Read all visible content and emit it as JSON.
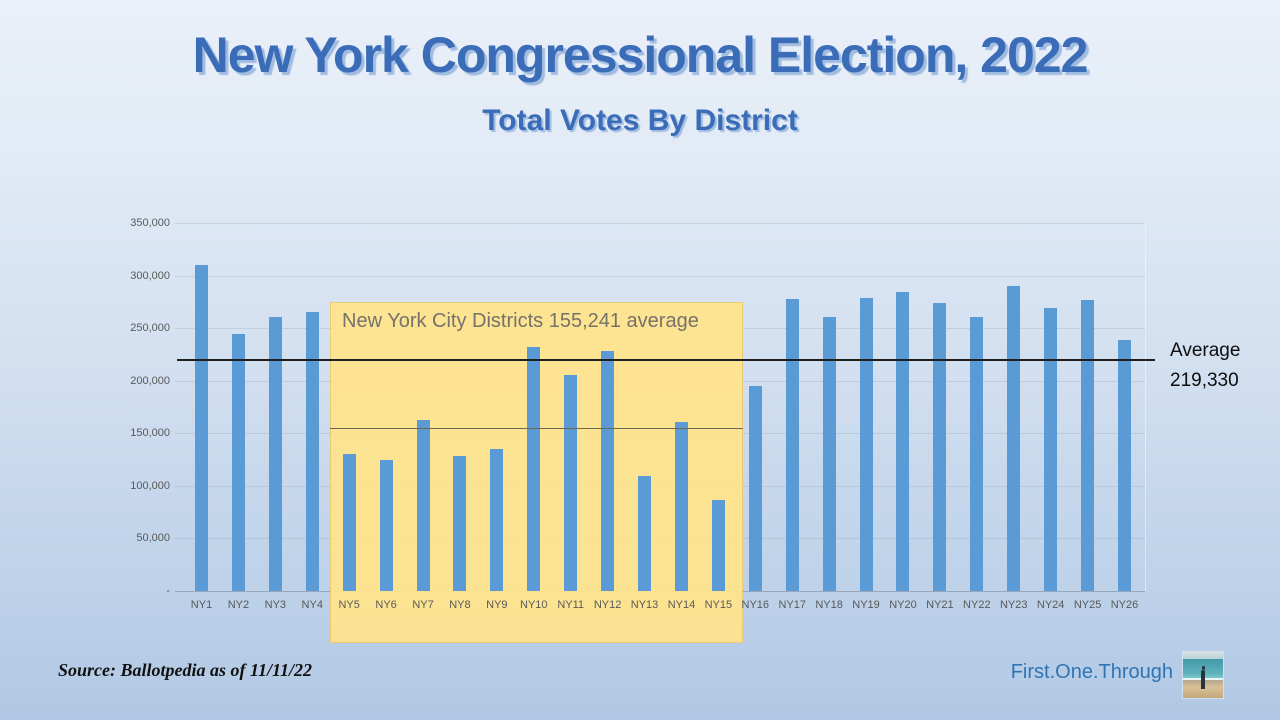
{
  "slide": {
    "title": "New York Congressional Election, 2022",
    "subtitle": "Total Votes By District",
    "source_note": "Source: Ballotpedia as of 11/11/22",
    "brand_text": "First.One.Through",
    "logo_icon": "beach-person-photo"
  },
  "chart_data": {
    "type": "bar",
    "title": "Total Votes By District",
    "categories": [
      "NY1",
      "NY2",
      "NY3",
      "NY4",
      "NY5",
      "NY6",
      "NY7",
      "NY8",
      "NY9",
      "NY10",
      "NY11",
      "NY12",
      "NY13",
      "NY14",
      "NY15",
      "NY16",
      "NY17",
      "NY18",
      "NY19",
      "NY20",
      "NY21",
      "NY22",
      "NY23",
      "NY24",
      "NY25",
      "NY26"
    ],
    "values": [
      310000,
      244000,
      261000,
      265000,
      130000,
      125000,
      163000,
      128000,
      135000,
      232000,
      205000,
      228000,
      109000,
      161000,
      87000,
      195000,
      278000,
      261000,
      279000,
      284000,
      274000,
      261000,
      290000,
      269000,
      277000,
      239000
    ],
    "xlabel": "",
    "ylabel": "",
    "ylim": [
      0,
      350000
    ],
    "ytick_values": [
      350000,
      300000,
      250000,
      200000,
      150000,
      100000,
      50000,
      0
    ],
    "ytick_labels": [
      "350,000",
      "300,000",
      "250,000",
      "200,000",
      "150,000",
      "100,000",
      "50,000",
      "-"
    ],
    "grid": true,
    "legend": false,
    "bar_color": "#5B9BD5",
    "average_line": {
      "value": 219330,
      "label_lines": [
        "Average",
        "219,330"
      ],
      "color": "#1f1f1f"
    },
    "highlight_region": {
      "label": "New York City Districts 155,241 average",
      "start_category": "NY5",
      "end_category": "NY15",
      "average_value": 155241,
      "fill_color": "#FFE38C"
    }
  }
}
